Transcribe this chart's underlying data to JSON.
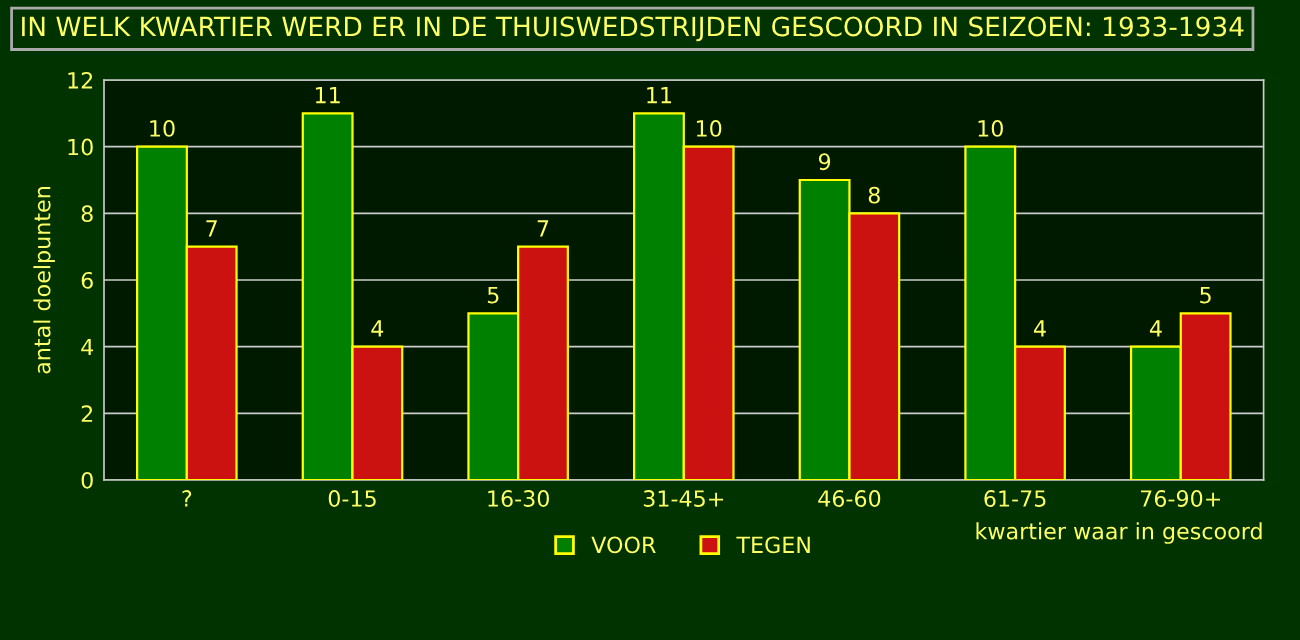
{
  "chart_data": {
    "type": "bar",
    "title": "IN WELK KWARTIER WERD ER IN DE THUISWEDSTRIJDEN GESCOORD IN SEIZOEN: 1933-1934",
    "xlabel": "kwartier waar in gescoord",
    "ylabel": "antal doelpunten",
    "categories": [
      "?",
      "0-15",
      "16-30",
      "31-45+",
      "46-60",
      "61-75",
      "76-90+"
    ],
    "series": [
      {
        "name": "VOOR",
        "color": "#008000",
        "values": [
          10,
          11,
          5,
          11,
          9,
          10,
          4
        ]
      },
      {
        "name": "TEGEN",
        "color": "#cc1111",
        "values": [
          7,
          4,
          7,
          10,
          8,
          4,
          5
        ]
      }
    ],
    "ylim": [
      0,
      12
    ],
    "yticks": [
      0,
      2,
      4,
      6,
      8,
      10,
      12
    ],
    "grid": "y",
    "legend": "bottom",
    "data_labels": true
  }
}
